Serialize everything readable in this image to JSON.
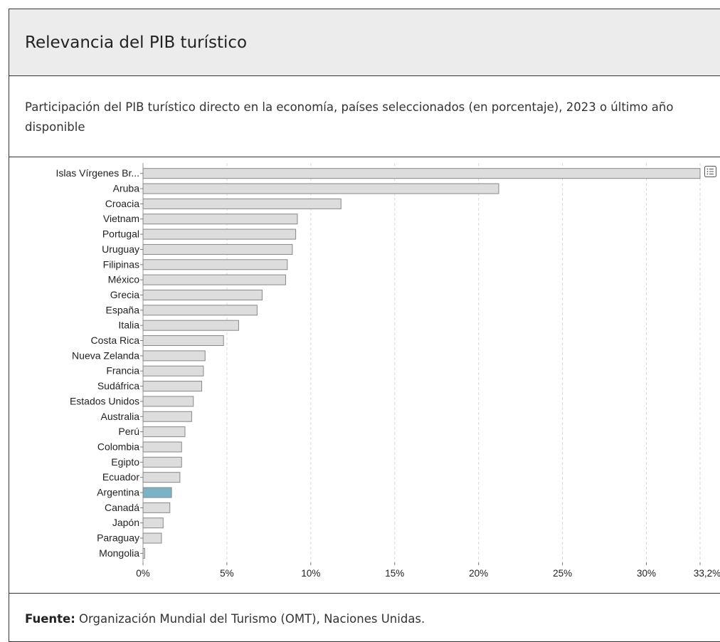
{
  "title": "Relevancia del PIB turístico",
  "subtitle": "Participación del PIB turístico directo en la economía, países seleccionados (en porcentaje), 2023 o último año disponible",
  "footer": {
    "label": "Fuente:",
    "text": " Organización Mundial del Turismo (OMT), Naciones Unidas."
  },
  "menu_icon": "list-menu-icon",
  "colors": {
    "bar": "#dddddd",
    "bar_stroke": "#888888",
    "highlight": "#7ab3c6",
    "grid": "#d8d8d8"
  },
  "chart_data": {
    "type": "bar",
    "orientation": "horizontal",
    "categories": [
      "Islas Vírgenes Br...",
      "Aruba",
      "Croacia",
      "Vietnam",
      "Portugal",
      "Uruguay",
      "Filipinas",
      "México",
      "Grecia",
      "España",
      "Italia",
      "Costa Rica",
      "Nueva Zelanda",
      "Francia",
      "Sudáfrica",
      "Estados Unidos",
      "Australia",
      "Perú",
      "Colombia",
      "Egipto",
      "Ecuador",
      "Argentina",
      "Canadá",
      "Japón",
      "Paraguay",
      "Mongolia"
    ],
    "values": [
      33.2,
      21.2,
      11.8,
      9.2,
      9.1,
      8.9,
      8.6,
      8.5,
      7.1,
      6.8,
      5.7,
      4.8,
      3.7,
      3.6,
      3.5,
      3.0,
      2.9,
      2.5,
      2.3,
      2.3,
      2.2,
      1.7,
      1.6,
      1.2,
      1.1,
      0.1
    ],
    "highlight": "Argentina",
    "xlim": [
      0,
      33.2
    ],
    "xticks": [
      0,
      5,
      10,
      15,
      20,
      25,
      30,
      33.2
    ],
    "xtick_labels": [
      "0%",
      "5%",
      "10%",
      "15%",
      "20%",
      "25%",
      "30%",
      "33,2%"
    ],
    "grid": true,
    "xlabel": "",
    "ylabel": ""
  }
}
